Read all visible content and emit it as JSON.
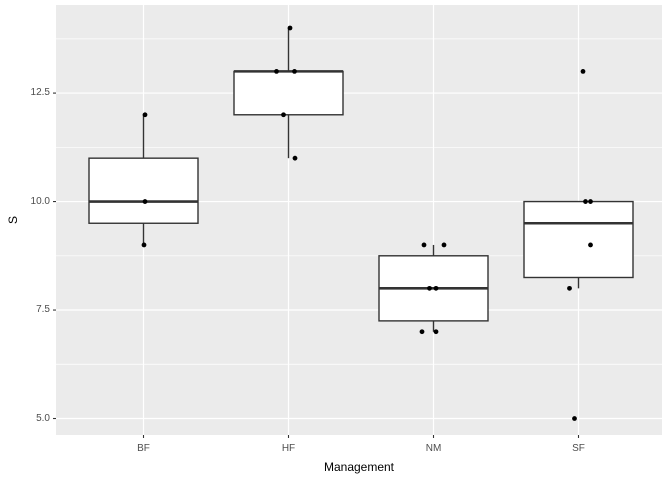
{
  "chart_data": {
    "type": "boxplot",
    "title": "",
    "xlabel": "Management",
    "ylabel": "S",
    "categories": [
      "BF",
      "HF",
      "NM",
      "SF"
    ],
    "y_ticks": [
      {
        "value": 5.0,
        "label": "5.0"
      },
      {
        "value": 7.5,
        "label": "7.5"
      },
      {
        "value": 10.0,
        "label": "10.0"
      },
      {
        "value": 12.5,
        "label": "12.5"
      }
    ],
    "y_minor_gridlines": [
      6.25,
      8.75,
      11.25,
      13.75
    ],
    "ylim": [
      4.62,
      14.53
    ],
    "grid": true,
    "legend": false,
    "boxes": [
      {
        "category": "BF",
        "q1": 9.5,
        "median": 10,
        "q3": 11,
        "whisker_low": 9,
        "whisker_high": 12,
        "outliers": []
      },
      {
        "category": "HF",
        "q1": 12,
        "median": 13,
        "q3": 13,
        "whisker_low": 11,
        "whisker_high": 14,
        "outliers": []
      },
      {
        "category": "NM",
        "q1": 7.25,
        "median": 8,
        "q3": 8.75,
        "whisker_low": 7,
        "whisker_high": 9,
        "outliers": []
      },
      {
        "category": "SF",
        "q1": 8.25,
        "median": 9.5,
        "q3": 10,
        "whisker_low": 8,
        "whisker_high": 10,
        "outliers": [
          13,
          5
        ]
      }
    ],
    "points": [
      {
        "category": "BF",
        "values": [
          [
            12,
            1.5
          ],
          [
            10,
            1.5
          ],
          [
            9,
            0.5
          ]
        ]
      },
      {
        "category": "HF",
        "values": [
          [
            14,
            1.5
          ],
          [
            13,
            -12
          ],
          [
            13,
            6
          ],
          [
            12,
            -5
          ],
          [
            11,
            6.5
          ]
        ]
      },
      {
        "category": "NM",
        "values": [
          [
            9,
            -9.5
          ],
          [
            9,
            10.5
          ],
          [
            8,
            -4
          ],
          [
            8,
            2.5
          ],
          [
            7,
            -11.5
          ],
          [
            7,
            2.5
          ]
        ]
      },
      {
        "category": "SF",
        "values": [
          [
            13,
            4.5
          ],
          [
            10,
            7
          ],
          [
            10,
            12
          ],
          [
            9,
            12
          ],
          [
            8,
            -9
          ],
          [
            5,
            -4
          ]
        ]
      }
    ],
    "colors": {
      "panel_background": "#EBEBEB",
      "gridline": "#FFFFFF",
      "box_border": "#333333",
      "box_fill": "#FFFFFF",
      "point": "#000000",
      "tick_mark": "#333333",
      "tick_label": "#4D4D4D",
      "axis_title": "#000000",
      "figure_background": "#FFFFFF"
    }
  }
}
